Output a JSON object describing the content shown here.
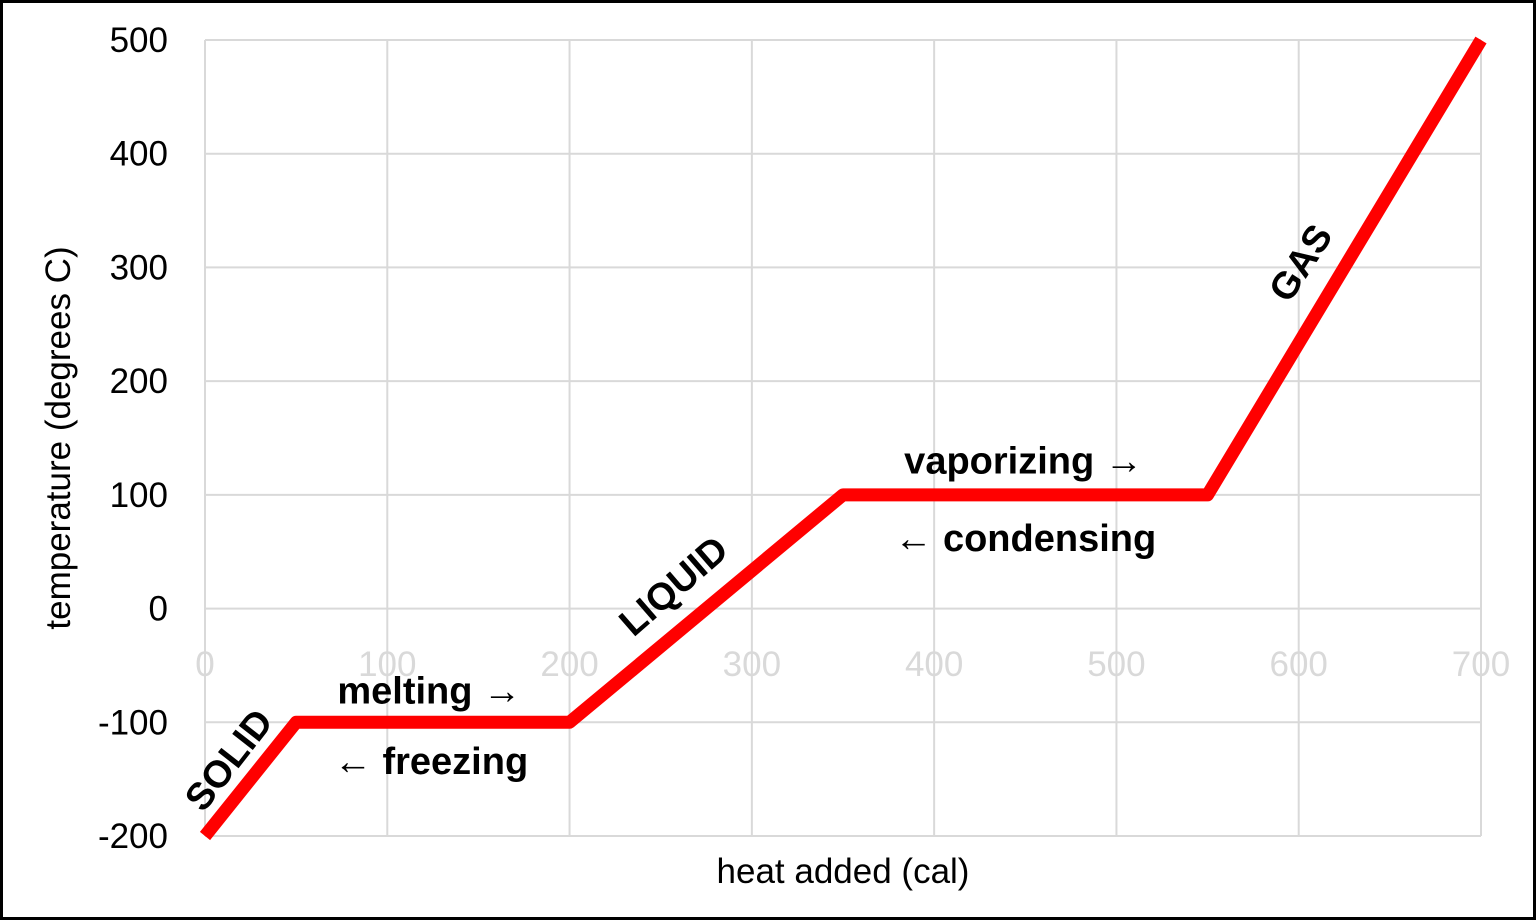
{
  "chart_data": {
    "type": "line",
    "title": "",
    "xlabel": "heat added (cal)",
    "ylabel": "temperature (degrees C)",
    "xlim": [
      0,
      700
    ],
    "ylim": [
      -200,
      500
    ],
    "x_ticks": [
      0,
      100,
      200,
      300,
      400,
      500,
      600,
      700
    ],
    "y_ticks": [
      -200,
      -100,
      0,
      100,
      200,
      300,
      400,
      500
    ],
    "grid": true,
    "legend": false,
    "series": [
      {
        "name": "heating-curve",
        "color": "#FF0000",
        "points": [
          {
            "x": 0,
            "y": -200
          },
          {
            "x": 50,
            "y": -100
          },
          {
            "x": 200,
            "y": -100
          },
          {
            "x": 350,
            "y": 100
          },
          {
            "x": 550,
            "y": 100
          },
          {
            "x": 700,
            "y": 500
          }
        ]
      }
    ],
    "annotations": [
      {
        "text": "SOLID",
        "x": 13,
        "y": -133,
        "rotation": -52,
        "bold": true
      },
      {
        "text": "melting →",
        "x": 123,
        "y": -72,
        "rotation": 0,
        "bold": true
      },
      {
        "text": "← freezing",
        "x": 124,
        "y": -134,
        "rotation": 0,
        "bold": true
      },
      {
        "text": "LIQUID",
        "x": 257,
        "y": 20,
        "rotation": -41,
        "bold": true
      },
      {
        "text": "vaporizing →",
        "x": 449,
        "y": 130,
        "rotation": 0,
        "bold": true
      },
      {
        "text": "← condensing",
        "x": 450,
        "y": 62,
        "rotation": 0,
        "bold": true
      },
      {
        "text": "GAS",
        "x": 601,
        "y": 304,
        "rotation": -57,
        "bold": true
      }
    ],
    "colors": {
      "line": "#FF0000",
      "grid": "#D9D9D9",
      "x_tick_label": "#D9D9D9",
      "y_tick_label": "#000000",
      "annotation": "#000000",
      "axis_title": "#000000",
      "background": "#FFFFFF",
      "border": "#000000"
    }
  }
}
